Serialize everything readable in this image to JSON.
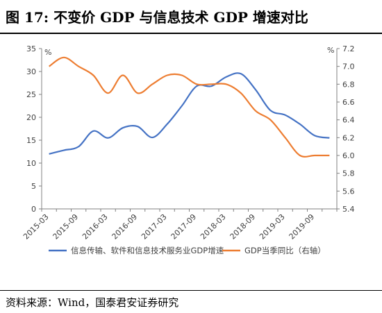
{
  "figure": {
    "title": "图 17:    不变价 GDP 与信息技术 GDP 增速对比",
    "source": "资料来源：Wind，国泰君安证券研究"
  },
  "chart_data": {
    "type": "line",
    "x": [
      "2015-03",
      "2015-06",
      "2015-09",
      "2015-12",
      "2016-03",
      "2016-06",
      "2016-09",
      "2016-12",
      "2017-03",
      "2017-06",
      "2017-09",
      "2017-12",
      "2018-03",
      "2018-06",
      "2018-09",
      "2018-12",
      "2019-03",
      "2019-06",
      "2019-09",
      "2019-12"
    ],
    "xticks": [
      "2015-03",
      "2015-09",
      "2016-03",
      "2016-09",
      "2017-03",
      "2017-09",
      "2018-03",
      "2018-09",
      "2019-03",
      "2019-09"
    ],
    "y_left": {
      "unit": "%",
      "lim": [
        0,
        35
      ],
      "ticks": [
        "0",
        "5",
        "10",
        "15",
        "20",
        "25",
        "30",
        "35"
      ]
    },
    "y_right": {
      "unit": "%",
      "lim": [
        5.4,
        7.2
      ],
      "ticks": [
        "5.4",
        "5.6",
        "5.8",
        "6.0",
        "6.2",
        "6.4",
        "6.6",
        "6.8",
        "7.0",
        "7.2"
      ]
    },
    "series": [
      {
        "name": "信息传输、软件和信息技术服务业GDP增速",
        "axis": "left",
        "color": "#4472C4",
        "values": [
          12.0,
          12.8,
          13.6,
          17.0,
          15.5,
          17.7,
          18.0,
          15.6,
          18.5,
          22.5,
          26.8,
          26.8,
          28.8,
          29.5,
          26.0,
          21.5,
          20.5,
          18.5,
          16.0,
          15.5
        ]
      },
      {
        "name": "GDP当季同比（右轴）",
        "axis": "right",
        "color": "#ED7D31",
        "values": [
          7.0,
          7.1,
          7.0,
          6.9,
          6.7,
          6.9,
          6.7,
          6.8,
          6.9,
          6.9,
          6.8,
          6.8,
          6.8,
          6.7,
          6.5,
          6.4,
          6.2,
          6.0,
          6.0,
          6.0
        ]
      }
    ],
    "legend": "bottom",
    "grid": false
  }
}
